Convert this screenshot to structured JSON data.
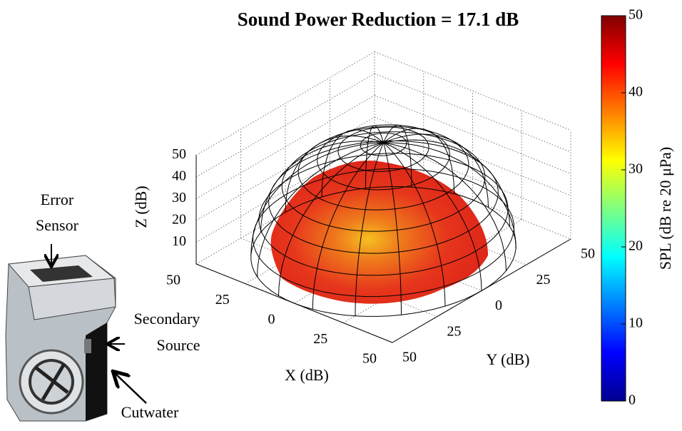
{
  "chart_data": {
    "type": "surface3d",
    "title": "Sound Power Reduction = 17.1 dB",
    "xlabel": "X (dB)",
    "ylabel": "Y (dB)",
    "zlabel": "Z (dB)",
    "xlim": [
      -50,
      50
    ],
    "xticks": [
      {
        "value": -50,
        "label": "50"
      },
      {
        "value": -25,
        "label": "25"
      },
      0,
      25,
      50
    ],
    "ylim": [
      -50,
      50
    ],
    "yticks": [
      {
        "value": -50,
        "label": "50"
      },
      {
        "value": -25,
        "label": "25"
      },
      0,
      25,
      50
    ],
    "zlim": [
      0,
      50
    ],
    "zticks": [
      10,
      20,
      30,
      40,
      50
    ],
    "grid": true,
    "colorbar": {
      "label": "SPL (dB re 20 μPa)",
      "clim": [
        0,
        50
      ],
      "ticks": [
        0,
        10,
        20,
        30,
        40,
        50
      ],
      "colormap": "jet"
    },
    "annotations": [
      [
        "Error",
        "Sensor"
      ],
      [
        "Secondary",
        "Source"
      ],
      [
        "Cutwater"
      ]
    ]
  }
}
